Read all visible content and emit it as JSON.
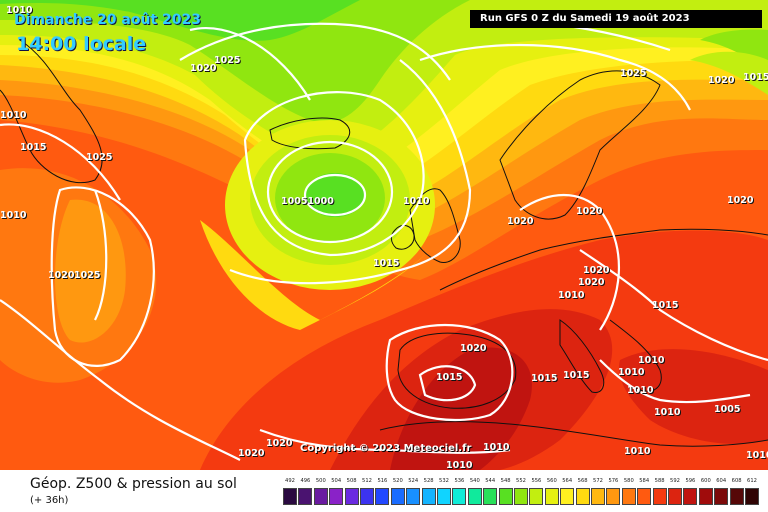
{
  "header": {
    "date": "Dimanche 20 août 2023",
    "time": "14:00 locale",
    "run": "Run GFS 0 Z du Samedi 19 août 2023"
  },
  "copyright": "Copyright © 2023 Meteociel.fr",
  "footer": {
    "title": "Géop. Z500 & pression au sol",
    "subtitle": "(+ 36h)"
  },
  "legend": {
    "values": [
      "492",
      "496",
      "500",
      "504",
      "508",
      "512",
      "516",
      "520",
      "524",
      "528",
      "532",
      "536",
      "540",
      "544",
      "548",
      "552",
      "556",
      "560",
      "564",
      "568",
      "572",
      "576",
      "580",
      "584",
      "588",
      "592",
      "596",
      "600",
      "604",
      "608",
      "612"
    ],
    "colors": [
      "#2a0a40",
      "#4a1370",
      "#6a1ba0",
      "#8a22c8",
      "#6a2ae0",
      "#3c33f0",
      "#2248ff",
      "#1a6cff",
      "#1890ff",
      "#14b4ff",
      "#10d4ff",
      "#10ecd8",
      "#10ea9c",
      "#28e05a",
      "#58e022",
      "#90e610",
      "#c2ee10",
      "#e6f010",
      "#fff020",
      "#ffda10",
      "#ffb810",
      "#ff9810",
      "#ff7810",
      "#ff5a10",
      "#f43a10",
      "#dc2410",
      "#c01410",
      "#a00c0c",
      "#7c0a0a",
      "#560808",
      "#300404"
    ]
  },
  "isobars": [
    {
      "text": "1010"
    },
    {
      "text": "1025"
    },
    {
      "text": "1020"
    },
    {
      "text": "1010"
    },
    {
      "text": "1015"
    },
    {
      "text": "1025"
    },
    {
      "text": "1010"
    },
    {
      "text": "1020"
    },
    {
      "text": "1025"
    },
    {
      "text": "10051000"
    },
    {
      "text": "1010"
    },
    {
      "text": "1015"
    },
    {
      "text": "1025"
    },
    {
      "text": "1020"
    },
    {
      "text": "1015"
    },
    {
      "text": "1020"
    },
    {
      "text": "1020"
    },
    {
      "text": "1020"
    },
    {
      "text": "1020"
    },
    {
      "text": "1020"
    },
    {
      "text": "1010"
    },
    {
      "text": "1015"
    },
    {
      "text": "1020"
    },
    {
      "text": "1015"
    },
    {
      "text": "1015"
    },
    {
      "text": "1015"
    },
    {
      "text": "1010"
    },
    {
      "text": "1010"
    },
    {
      "text": "1010"
    },
    {
      "text": "1010"
    },
    {
      "text": "1005"
    },
    {
      "text": "1010"
    },
    {
      "text": "1010"
    },
    {
      "text": "1010"
    },
    {
      "text": "1020"
    },
    {
      "text": "1020"
    },
    {
      "text": "1010"
    }
  ]
}
